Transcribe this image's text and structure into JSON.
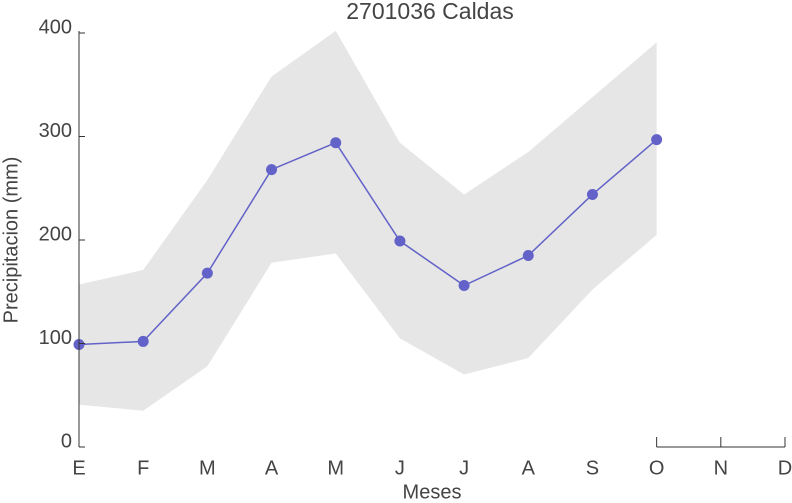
{
  "chart_data": {
    "type": "line",
    "title": "2701036 Caldas",
    "x_label": "Meses",
    "y_label": "Precipitacion (mm)",
    "categories": [
      "E",
      "F",
      "M",
      "A",
      "M",
      "J",
      "J",
      "A",
      "S",
      "O",
      "N",
      "D"
    ],
    "series": [
      {
        "color": "#6262c8",
        "values": [
          99,
          102,
          168,
          268,
          294,
          199,
          156,
          185,
          244,
          297,
          null,
          null
        ]
      }
    ],
    "band": {
      "color": "#e6e6e6",
      "upper": [
        157,
        171,
        258,
        358,
        402,
        294,
        244,
        285,
        338,
        391,
        null,
        null
      ],
      "lower": [
        41,
        35,
        78,
        178,
        187,
        105,
        70,
        86,
        152,
        205,
        null,
        null
      ]
    },
    "ylim": [
      0,
      400
    ],
    "yticks": [
      0,
      100,
      200,
      300,
      400
    ]
  }
}
